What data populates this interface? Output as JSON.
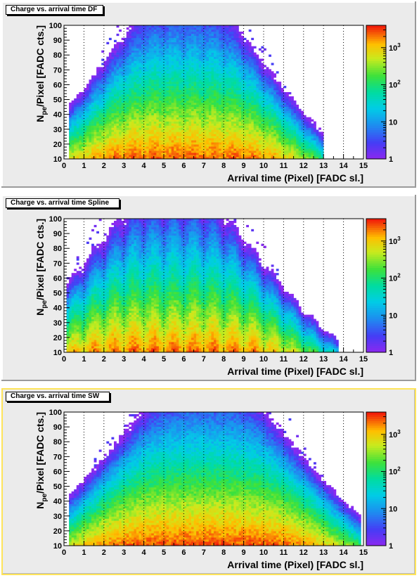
{
  "chart_data": [
    {
      "type": "heatmap",
      "title": "Charge vs. arrival time DF",
      "xlabel": "Arrival time (Pixel) [FADC sl.]",
      "ylabel_main": "N",
      "ylabel_sub": "pe",
      "ylabel_rest": "/Pixel [FADC cts.]",
      "xlim": [
        0,
        15
      ],
      "ylim": [
        10,
        100
      ],
      "x_ticks": [
        "0",
        "1",
        "2",
        "3",
        "4",
        "5",
        "6",
        "7",
        "8",
        "9",
        "10",
        "11",
        "12",
        "13",
        "14",
        "15"
      ],
      "y_ticks": [
        "10",
        "20",
        "30",
        "40",
        "50",
        "60",
        "70",
        "80",
        "90",
        "100"
      ],
      "z_scale": "log",
      "zlim": [
        1,
        4000
      ],
      "z_ticks": [
        {
          "value": 1,
          "base": "1",
          "exp": ""
        },
        {
          "value": 10,
          "base": "10",
          "exp": ""
        },
        {
          "value": 100,
          "base": "10",
          "exp": "2"
        },
        {
          "value": 1000,
          "base": "10",
          "exp": "3"
        }
      ],
      "x_gridlines": [
        1,
        2,
        3,
        4,
        5,
        6,
        7,
        8,
        9,
        10,
        11,
        12,
        13,
        14
      ],
      "grid": "vertical dotted",
      "density_model": {
        "peak_x": 6.0,
        "peak_z": 3000,
        "x_range": [
          0.2,
          13.0
        ],
        "ripple_period": 1.0,
        "ripple_depth": 0.3
      }
    },
    {
      "type": "heatmap",
      "title": "Charge vs. arrival time Spline",
      "xlabel": "Arrival time (Pixel) [FADC sl.]",
      "ylabel_main": "N",
      "ylabel_sub": "pe",
      "ylabel_rest": "/Pixel [FADC cts.]",
      "xlim": [
        0,
        15
      ],
      "ylim": [
        10,
        100
      ],
      "x_ticks": [
        "0",
        "1",
        "2",
        "3",
        "4",
        "5",
        "6",
        "7",
        "8",
        "9",
        "10",
        "11",
        "12",
        "13",
        "14",
        "15"
      ],
      "y_ticks": [
        "10",
        "20",
        "30",
        "40",
        "50",
        "60",
        "70",
        "80",
        "90",
        "100"
      ],
      "z_scale": "log",
      "zlim": [
        1,
        4000
      ],
      "z_ticks": [
        {
          "value": 1,
          "base": "1",
          "exp": ""
        },
        {
          "value": 10,
          "base": "10",
          "exp": ""
        },
        {
          "value": 100,
          "base": "10",
          "exp": "2"
        },
        {
          "value": 1000,
          "base": "10",
          "exp": "3"
        }
      ],
      "x_gridlines": [
        1,
        2,
        3,
        4,
        5,
        6,
        7,
        8,
        9,
        10,
        11,
        12,
        13,
        14
      ],
      "grid": "vertical dotted",
      "density_model": {
        "peak_x": 5.5,
        "peak_z": 3000,
        "x_range": [
          0.1,
          13.8
        ],
        "ripple_period": 1.0,
        "ripple_depth": 0.6
      }
    },
    {
      "type": "heatmap",
      "title": "Charge vs. arrival time SW",
      "xlabel": "Arrival time (Pixel) [FADC sl.]",
      "ylabel_main": "N",
      "ylabel_sub": "pe",
      "ylabel_rest": "/Pixel [FADC cts.]",
      "xlim": [
        0,
        15
      ],
      "ylim": [
        10,
        100
      ],
      "x_ticks": [
        "0",
        "1",
        "2",
        "3",
        "4",
        "5",
        "6",
        "7",
        "8",
        "9",
        "10",
        "11",
        "12",
        "13",
        "14",
        "15"
      ],
      "y_ticks": [
        "10",
        "20",
        "30",
        "40",
        "50",
        "60",
        "70",
        "80",
        "90",
        "100"
      ],
      "z_scale": "log",
      "zlim": [
        1,
        4000
      ],
      "z_ticks": [
        {
          "value": 1,
          "base": "1",
          "exp": ""
        },
        {
          "value": 10,
          "base": "10",
          "exp": ""
        },
        {
          "value": 100,
          "base": "10",
          "exp": "2"
        },
        {
          "value": 1000,
          "base": "10",
          "exp": "3"
        }
      ],
      "x_gridlines": [
        1,
        2,
        3,
        4,
        5,
        6,
        7,
        8,
        9,
        10,
        11,
        12,
        13,
        14
      ],
      "grid": "vertical dotted",
      "density_model": {
        "peak_x": 7.0,
        "peak_z": 3000,
        "x_range": [
          0.2,
          14.9
        ],
        "ripple_period": 0,
        "ripple_depth": 0
      }
    }
  ]
}
